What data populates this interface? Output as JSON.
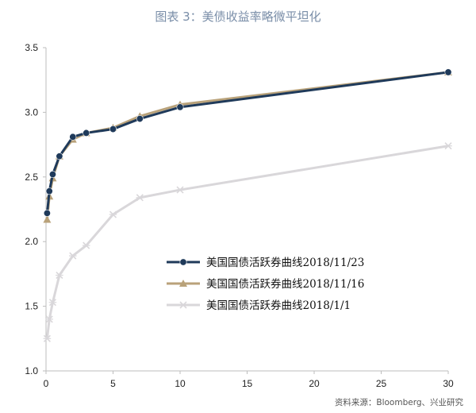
{
  "title": "图表 3：美债收益率略微平坦化",
  "source": "资料来源：Bloomberg、兴业研究",
  "colors": {
    "title": "#7a8ea8"
  },
  "chart_data": {
    "type": "line",
    "title": "图表 3：美债收益率略微平坦化",
    "xlabel": "",
    "ylabel": "",
    "xlim": [
      0,
      30
    ],
    "ylim": [
      1.0,
      3.5
    ],
    "xticks": [
      0,
      5,
      10,
      15,
      20,
      25,
      30
    ],
    "yticks": [
      1.0,
      1.5,
      2.0,
      2.5,
      3.0,
      3.5
    ],
    "xtick_labels": [
      "0",
      "5",
      "10",
      "15",
      "20",
      "25",
      "30"
    ],
    "ytick_labels": [
      "1.0",
      "1.5",
      "2.0",
      "2.5",
      "3.0",
      "3.5"
    ],
    "grid": false,
    "legend_position": "bottom-right",
    "series": [
      {
        "name": "美国国债活跃券曲线2018/11/23",
        "color": "#1f3a5a",
        "marker": "circle",
        "x": [
          0.083,
          0.25,
          0.5,
          1,
          2,
          3,
          5,
          7,
          10,
          30
        ],
        "y": [
          2.22,
          2.39,
          2.52,
          2.66,
          2.81,
          2.84,
          2.87,
          2.95,
          3.04,
          3.31
        ]
      },
      {
        "name": "美国国债活跃券曲线2018/11/16",
        "color": "#b9a27a",
        "marker": "triangle",
        "x": [
          0.083,
          0.25,
          0.5,
          1,
          2,
          3,
          5,
          7,
          10,
          30
        ],
        "y": [
          2.17,
          2.35,
          2.49,
          2.66,
          2.79,
          2.84,
          2.88,
          2.97,
          3.06,
          3.31
        ]
      },
      {
        "name": "美国国债活跃券曲线2018/1/1",
        "color": "#d9d7da",
        "marker": "x",
        "x": [
          0.083,
          0.25,
          0.5,
          1,
          2,
          3,
          5,
          7,
          10,
          30
        ],
        "y": [
          1.25,
          1.4,
          1.53,
          1.74,
          1.89,
          1.97,
          2.21,
          2.34,
          2.4,
          2.74
        ]
      }
    ]
  }
}
